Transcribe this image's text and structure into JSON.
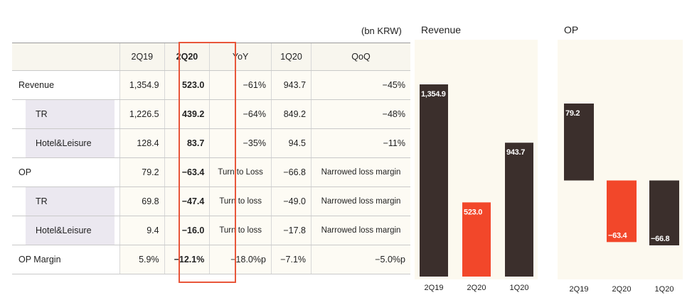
{
  "unit_label": "(bn KRW)",
  "table": {
    "headers": [
      "2Q19",
      "2Q20",
      "YoY",
      "1Q20",
      "QoQ"
    ],
    "rows": [
      {
        "label": "Revenue",
        "cells": [
          "1,354.9",
          "523.0",
          "−61%",
          "943.7",
          "−45%"
        ],
        "sub": false
      },
      {
        "label": "TR",
        "cells": [
          "1,226.5",
          "439.2",
          "−64%",
          "849.2",
          "−48%"
        ],
        "sub": true
      },
      {
        "label": "Hotel&Leisure",
        "cells": [
          "128.4",
          "83.7",
          "−35%",
          "94.5",
          "−11%"
        ],
        "sub": true
      },
      {
        "label": "OP",
        "cells": [
          "79.2",
          "−63.4",
          "Turn to Loss",
          "−66.8",
          "Narrowed loss margin"
        ],
        "sub": false
      },
      {
        "label": "TR",
        "cells": [
          "69.8",
          "−47.4",
          "Turn to loss",
          "−49.0",
          "Narrowed loss margin"
        ],
        "sub": true
      },
      {
        "label": "Hotel&Leisure",
        "cells": [
          "9.4",
          "−16.0",
          "Turn to loss",
          "−17.8",
          "Narrowed loss margin"
        ],
        "sub": true
      },
      {
        "label": "OP Margin",
        "cells": [
          "5.9%",
          "−12.1%",
          "−18.0%p",
          "−7.1%",
          "−5.0%p"
        ],
        "sub": false
      }
    ]
  },
  "chart_data": [
    {
      "type": "bar",
      "title": "Revenue",
      "categories": [
        "2Q19",
        "2Q20",
        "1Q20"
      ],
      "values": [
        1354.9,
        523.0,
        943.7
      ],
      "labels": [
        "1,354.9",
        "523.0",
        "943.7"
      ],
      "colors": [
        "#3b2f2c",
        "#f2472a",
        "#3b2f2c"
      ]
    },
    {
      "type": "bar",
      "title": "OP",
      "categories": [
        "2Q19",
        "2Q20",
        "1Q20"
      ],
      "values": [
        79.2,
        -63.4,
        -66.8
      ],
      "labels": [
        "79.2",
        "−63.4",
        "−66.8"
      ],
      "colors": [
        "#3b2f2c",
        "#f2472a",
        "#3b2f2c"
      ]
    }
  ]
}
